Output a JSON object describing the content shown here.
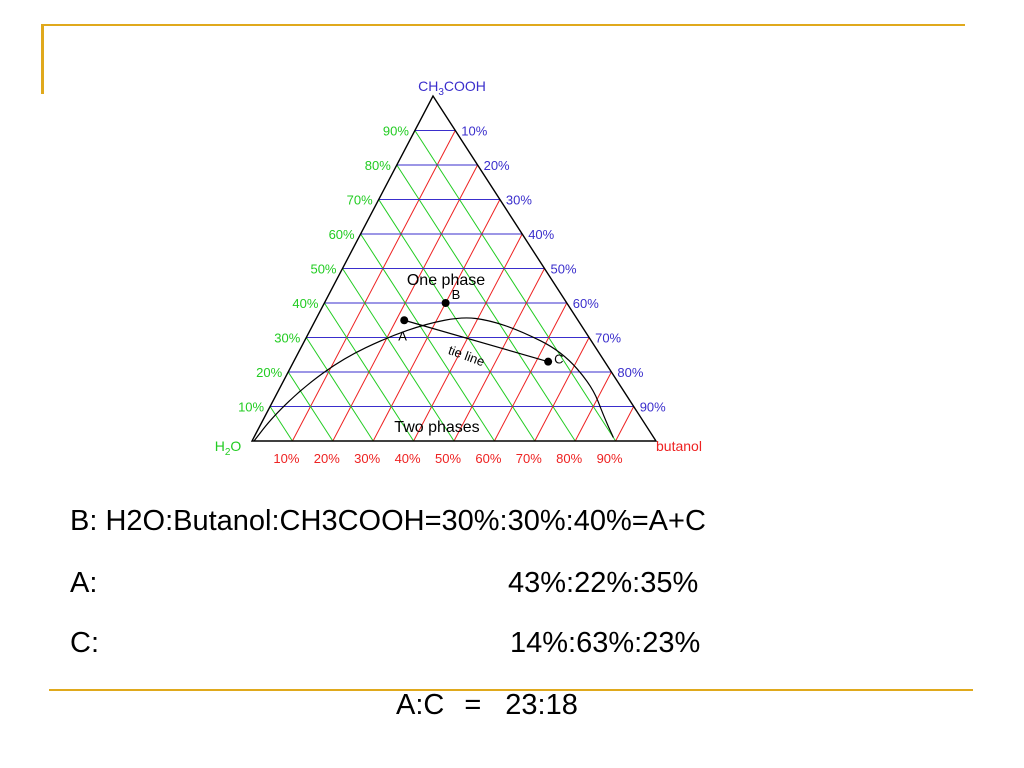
{
  "colors": {
    "frame": "#e0a91c",
    "left_series": "#22cc22",
    "right_series": "#3a2ecc",
    "bottom_series": "#ee2222"
  },
  "diagram": {
    "apex_label": "CH3COOH",
    "left_label": "H2O",
    "right_label": "butanol",
    "left_ticks": [
      "10%",
      "20%",
      "30%",
      "40%",
      "50%",
      "60%",
      "70%",
      "80%",
      "90%"
    ],
    "right_ticks": [
      "90%",
      "80%",
      "70%",
      "60%",
      "50%",
      "40%",
      "30%",
      "20%",
      "10%"
    ],
    "bottom_ticks": [
      "10%",
      "20%",
      "30%",
      "40%",
      "50%",
      "60%",
      "70%",
      "80%",
      "90%"
    ],
    "region_one": "One phase",
    "region_two": "Two phases",
    "tie_line_label": "tie line",
    "points": [
      {
        "label": "A",
        "h2o": 43,
        "butanol": 22,
        "acid": 35
      },
      {
        "label": "B",
        "h2o": 30,
        "butanol": 30,
        "acid": 40
      },
      {
        "label": "C",
        "h2o": 14,
        "butanol": 63,
        "acid": 23
      }
    ],
    "binodal_curve": [
      [
        0.89,
        0.01
      ],
      [
        0.84,
        0.07
      ],
      [
        0.77,
        0.16
      ],
      [
        0.65,
        0.26
      ],
      [
        0.52,
        0.32
      ],
      [
        0.43,
        0.35
      ],
      [
        0.36,
        0.36
      ],
      [
        0.28,
        0.34
      ],
      [
        0.2,
        0.3
      ],
      [
        0.12,
        0.24
      ],
      [
        0.06,
        0.16
      ],
      [
        0.02,
        0.07
      ],
      [
        0.005,
        0.0
      ]
    ]
  },
  "equations": {
    "line1": "B: H2O:Butanol:CH3COOH=30%:30%:40%=A+C",
    "line2_label": "A:",
    "line2_value": "43%:22%:35%",
    "line3_label": "C:",
    "line3_value": "14%:63%:23%",
    "ratio_left": "A:C",
    "ratio_eq": "=",
    "ratio_right": "23:18"
  }
}
